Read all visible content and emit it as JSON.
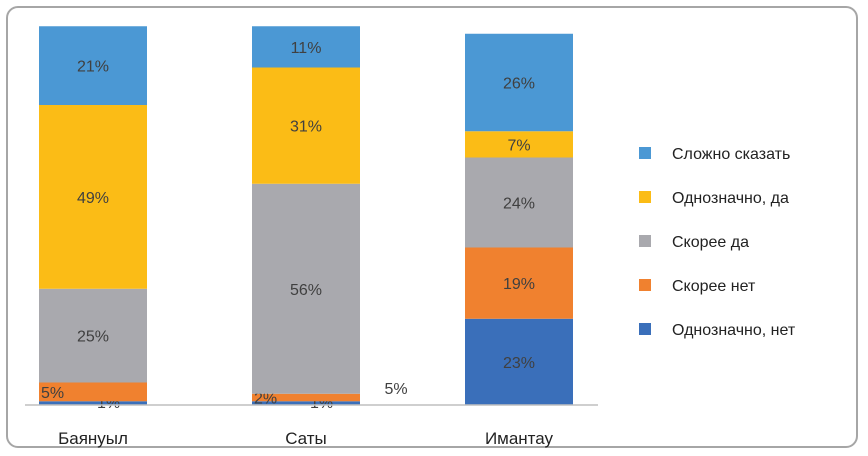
{
  "chart_data": {
    "type": "bar",
    "stacked": true,
    "categories": [
      "Баянуыл",
      "Саты",
      "Имантау"
    ],
    "series": [
      {
        "name": "Однозначно, нет",
        "color": "#3a6fba",
        "values": [
          1,
          1,
          23
        ],
        "labels": [
          "1%",
          "1%",
          "23%"
        ]
      },
      {
        "name": "Скорее нет",
        "color": "#f0812f",
        "values": [
          5,
          2,
          19
        ],
        "labels": [
          "5%",
          "2%",
          "19%"
        ]
      },
      {
        "name": "Скорее да",
        "color": "#a9a9ae",
        "values": [
          25,
          56,
          24
        ],
        "labels": [
          "25%",
          "56%",
          "24%"
        ]
      },
      {
        "name": "Однозначно, да",
        "color": "#fbbc16",
        "values": [
          49,
          31,
          7
        ],
        "labels": [
          "49%",
          "31%",
          "7%"
        ]
      },
      {
        "name": "Сложно сказать",
        "color": "#4b98d4",
        "values": [
          21,
          11,
          26
        ],
        "labels": [
          "21%",
          "11%",
          "26%"
        ]
      }
    ],
    "extra_labels": [
      {
        "text": "5%",
        "category": "Саты"
      }
    ],
    "legend_order": [
      "Сложно сказать",
      "Однозначно, да",
      "Скорее да",
      "Скорее нет",
      "Однозначно, нет"
    ],
    "legend_position": "right",
    "ylim": [
      0,
      100
    ],
    "grid": false,
    "title": "",
    "xlabel": "",
    "ylabel": ""
  }
}
